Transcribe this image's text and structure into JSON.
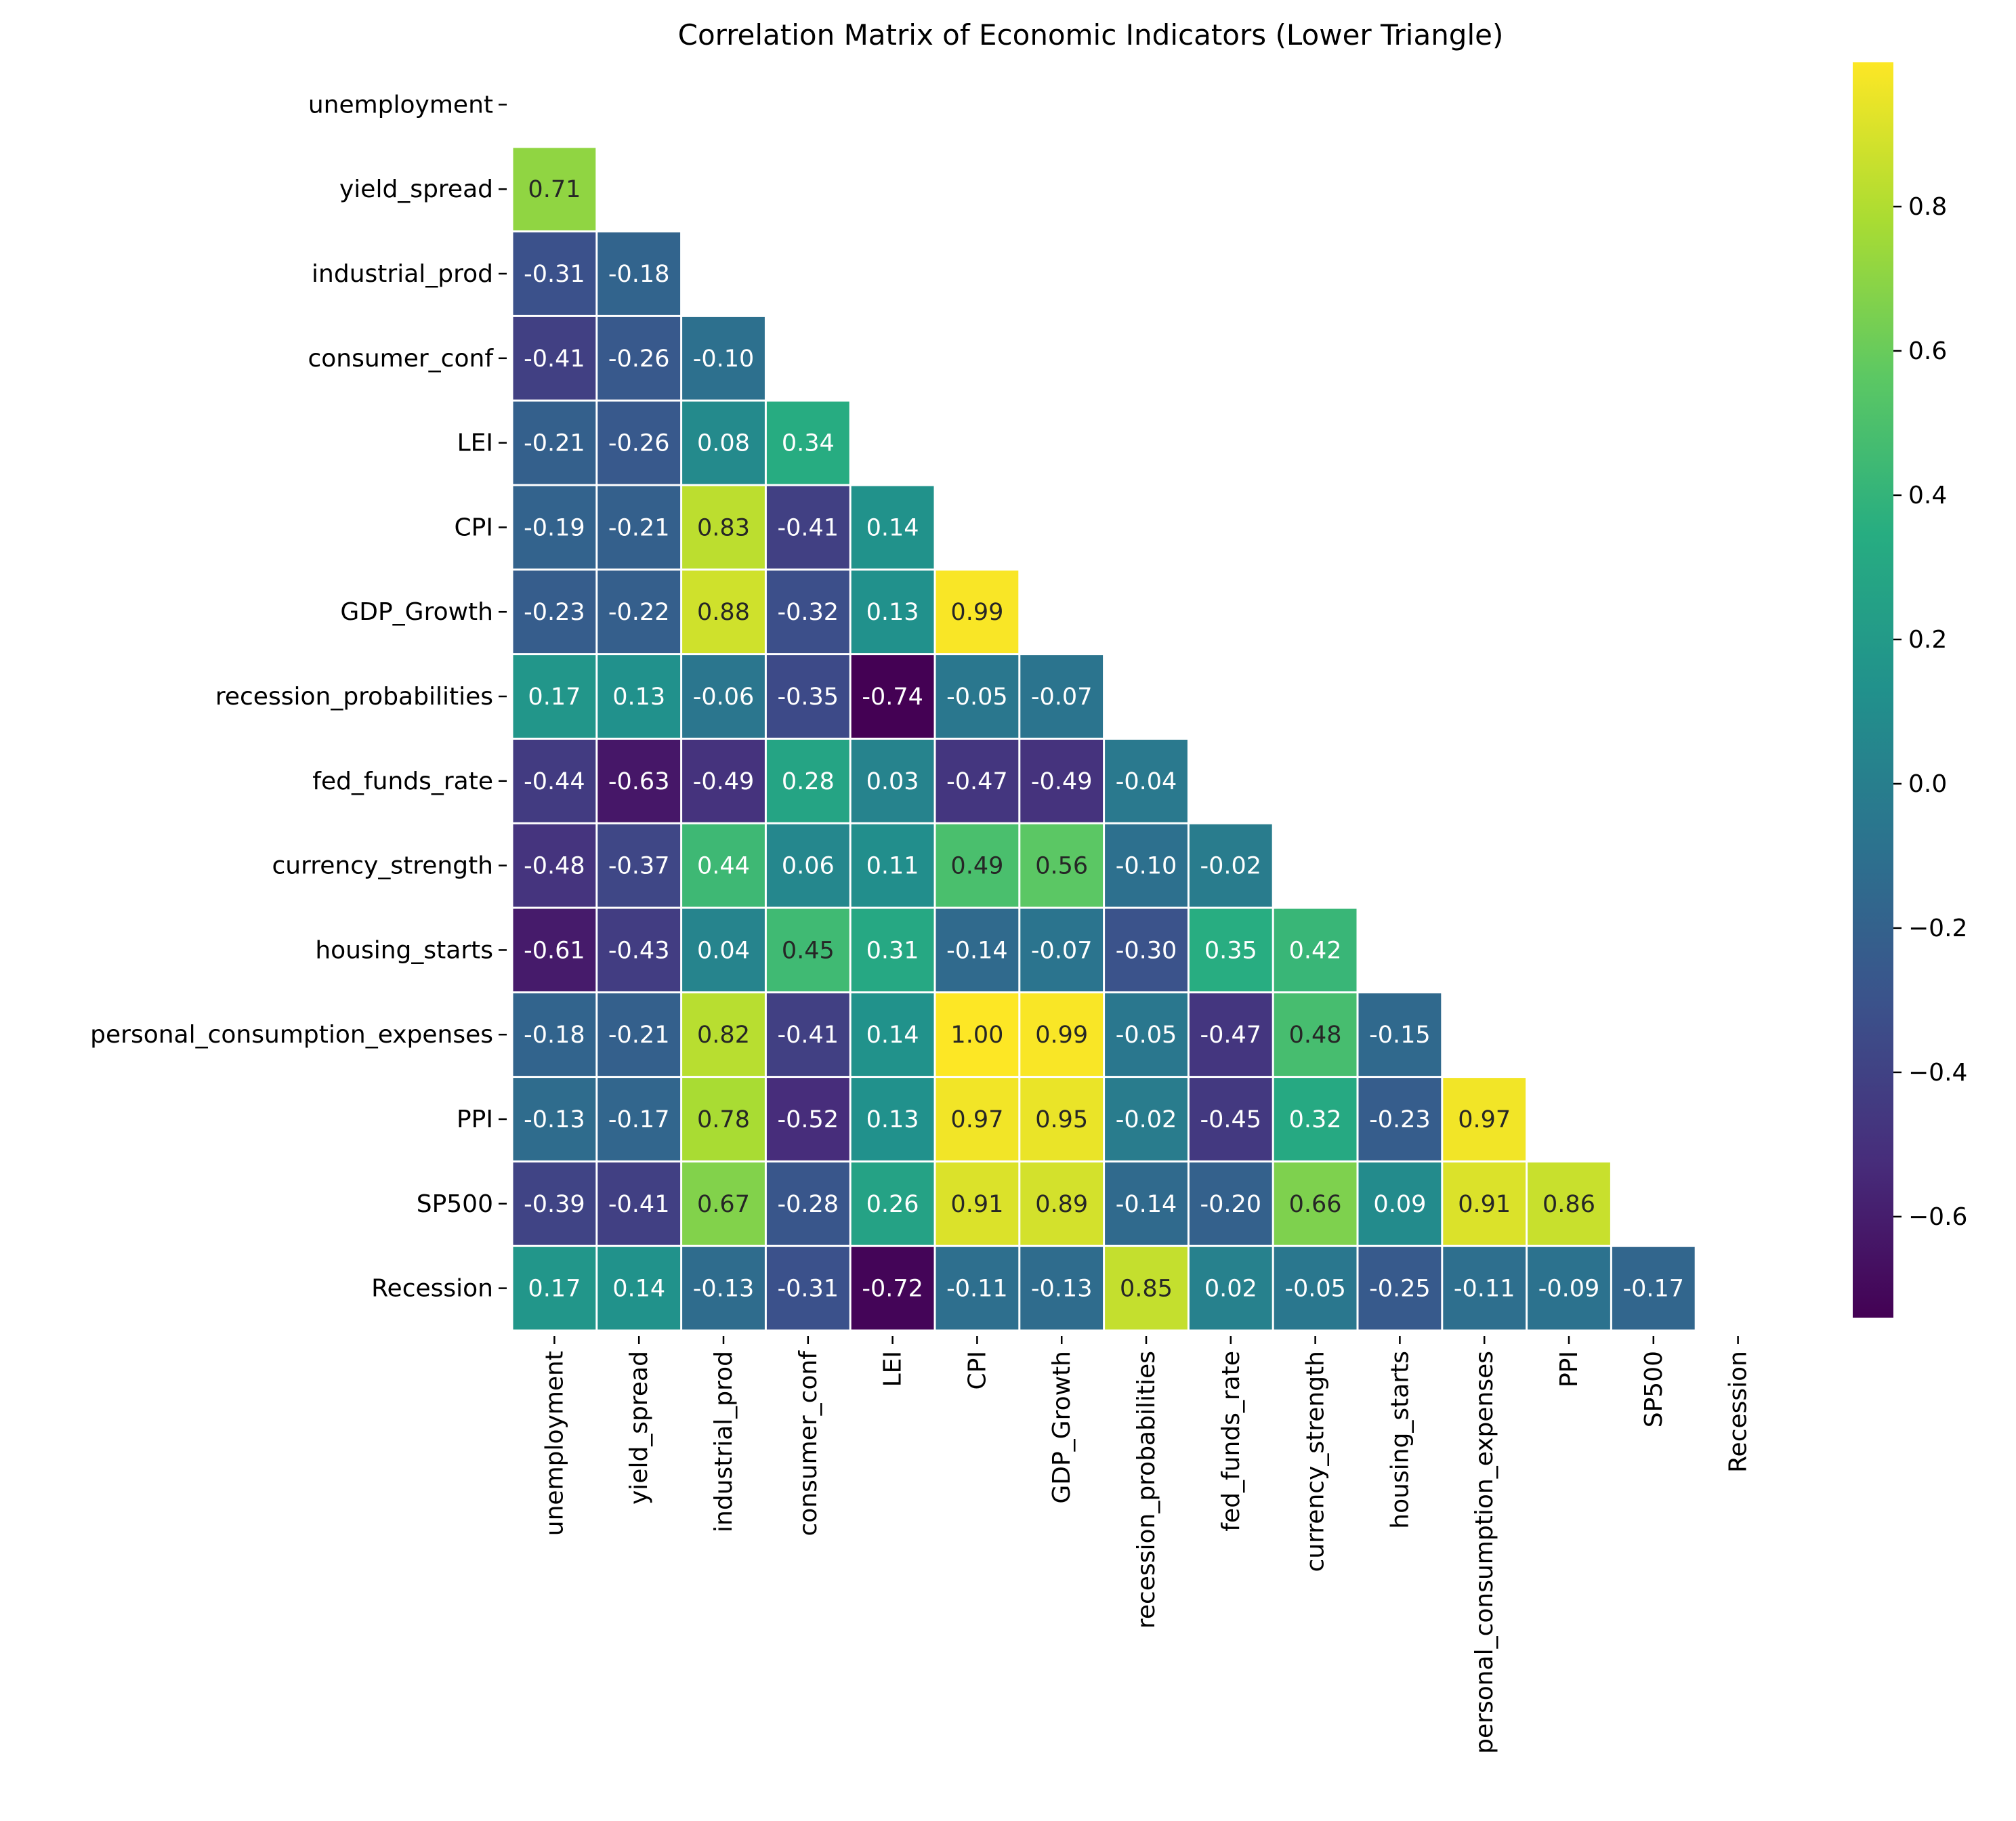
{
  "chart_data": {
    "type": "heatmap",
    "title": "Correlation Matrix of Economic Indicators (Lower Triangle)",
    "xlabel": "",
    "ylabel": "",
    "labels": [
      "unemployment",
      "yield_spread",
      "industrial_prod",
      "consumer_conf",
      "LEI",
      "CPI",
      "GDP_Growth",
      "recession_probabilities",
      "fed_funds_rate",
      "currency_strength",
      "housing_starts",
      "personal_consumption_expenses",
      "PPI",
      "SP500",
      "Recession"
    ],
    "matrix": [
      [],
      [
        0.71
      ],
      [
        -0.31,
        -0.18
      ],
      [
        -0.41,
        -0.26,
        -0.1
      ],
      [
        -0.21,
        -0.26,
        0.08,
        0.34
      ],
      [
        -0.19,
        -0.21,
        0.83,
        -0.41,
        0.14
      ],
      [
        -0.23,
        -0.22,
        0.88,
        -0.32,
        0.13,
        0.99
      ],
      [
        0.17,
        0.13,
        -0.06,
        -0.35,
        -0.74,
        -0.05,
        -0.07
      ],
      [
        -0.44,
        -0.63,
        -0.49,
        0.28,
        0.03,
        -0.47,
        -0.49,
        -0.04
      ],
      [
        -0.48,
        -0.37,
        0.44,
        0.06,
        0.11,
        0.49,
        0.56,
        -0.1,
        -0.02
      ],
      [
        -0.61,
        -0.43,
        0.04,
        0.45,
        0.31,
        -0.14,
        -0.07,
        -0.3,
        0.35,
        0.42
      ],
      [
        -0.18,
        -0.21,
        0.82,
        -0.41,
        0.14,
        1.0,
        0.99,
        -0.05,
        -0.47,
        0.48,
        -0.15
      ],
      [
        -0.13,
        -0.17,
        0.78,
        -0.52,
        0.13,
        0.97,
        0.95,
        -0.02,
        -0.45,
        0.32,
        -0.23,
        0.97
      ],
      [
        -0.39,
        -0.41,
        0.67,
        -0.28,
        0.26,
        0.91,
        0.89,
        -0.14,
        -0.2,
        0.66,
        0.09,
        0.91,
        0.86
      ],
      [
        0.17,
        0.14,
        -0.13,
        -0.31,
        -0.72,
        -0.11,
        -0.13,
        0.85,
        0.02,
        -0.05,
        -0.25,
        -0.11,
        -0.09,
        -0.17
      ]
    ],
    "colormap": "viridis",
    "vmin": -0.74,
    "vmax": 1.0,
    "colorbar_ticks": [
      0.8,
      0.6,
      0.4,
      0.2,
      0.0,
      -0.2,
      -0.4,
      -0.6
    ],
    "colorbar_tick_labels": [
      "0.8",
      "0.6",
      "0.4",
      "0.2",
      "0.0",
      "−0.2",
      "−0.4",
      "−0.6"
    ],
    "grid": false,
    "legend": "colorbar-right"
  }
}
